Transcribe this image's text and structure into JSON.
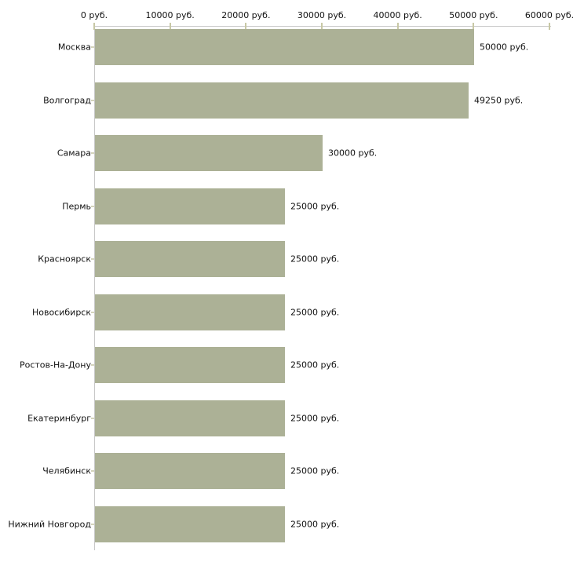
{
  "chart_data": {
    "type": "bar",
    "orientation": "horizontal",
    "title": "",
    "xlabel": "",
    "ylabel": "",
    "unit": "руб.",
    "categories": [
      "Москва",
      "Волгоград",
      "Самара",
      "Пермь",
      "Красноярск",
      "Новосибирск",
      "Ростов-На-Дону",
      "Екатеринбург",
      "Челябинск",
      "Нижний Новгород"
    ],
    "values": [
      50000,
      49250,
      30000,
      25000,
      25000,
      25000,
      25000,
      25000,
      25000,
      25000
    ],
    "value_labels": [
      "50000 руб.",
      "49250 руб.",
      "30000 руб.",
      "25000 руб.",
      "25000 руб.",
      "25000 руб.",
      "25000 руб.",
      "25000 руб.",
      "25000 руб.",
      "25000 руб."
    ],
    "x_tick_values": [
      0,
      10000,
      20000,
      30000,
      40000,
      50000,
      60000
    ],
    "x_tick_labels": [
      "0 руб.",
      "10000 руб.",
      "20000 руб.",
      "30000 руб.",
      "40000 руб.",
      "50000 руб.",
      "60000 руб."
    ],
    "xlim": [
      0,
      60000
    ],
    "grid": false,
    "legend": false,
    "axis_position": "top",
    "colors": {
      "bar": "#acb196",
      "axis_line": "#c8c8c8",
      "axis_tick": "#c8c8a5",
      "row_tick": "#d4d4bc",
      "text": "#111111",
      "background": "#ffffff"
    }
  }
}
